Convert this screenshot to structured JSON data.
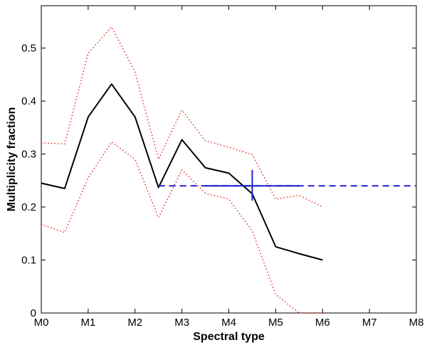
{
  "chart_data": {
    "type": "line",
    "xlabel": "Spectral type",
    "ylabel": "Multiplicity fraction",
    "x_tick_labels": [
      "M0",
      "M1",
      "M2",
      "M3",
      "M4",
      "M5",
      "M6",
      "M7",
      "M8"
    ],
    "y_ticks": [
      0,
      0.1,
      0.2,
      0.3,
      0.4,
      0.5
    ],
    "xlim": [
      0,
      8
    ],
    "ylim": [
      0,
      0.58
    ],
    "grid": false,
    "series": [
      {
        "style": "solid",
        "color": "#000000",
        "x": [
          0,
          0.5,
          1,
          1.5,
          2,
          2.5,
          3,
          3.5,
          4,
          4.5,
          5,
          5.5,
          6
        ],
        "y": [
          0.245,
          0.235,
          0.37,
          0.432,
          0.37,
          0.237,
          0.327,
          0.274,
          0.264,
          0.225,
          0.125,
          0.112,
          0.1
        ]
      },
      {
        "style": "dotted",
        "color": "#e0302a",
        "x": [
          0,
          0.5,
          1,
          1.5,
          2,
          2.5,
          3,
          3.5,
          4,
          4.5,
          5,
          5.5,
          6
        ],
        "y": [
          0.321,
          0.319,
          0.49,
          0.54,
          0.455,
          0.29,
          0.383,
          0.325,
          0.313,
          0.299,
          0.215,
          0.222,
          0.2
        ]
      },
      {
        "style": "dotted",
        "color": "#e0302a",
        "x": [
          0,
          0.5,
          1,
          1.5,
          2,
          2.5,
          3,
          3.5,
          4,
          4.5,
          5,
          5.5,
          6
        ],
        "y": [
          0.167,
          0.152,
          0.255,
          0.323,
          0.29,
          0.18,
          0.27,
          0.226,
          0.215,
          0.155,
          0.035,
          0.0,
          0.0
        ]
      }
    ],
    "reference": {
      "color": "#1f1fd0",
      "value": 0.24,
      "dashed_x": [
        2.5,
        8
      ],
      "solid_x": [
        3.5,
        5.5
      ],
      "errorbar": {
        "x": 4.5,
        "y": 0.24,
        "ylow": 0.212,
        "yhigh": 0.27
      }
    }
  }
}
